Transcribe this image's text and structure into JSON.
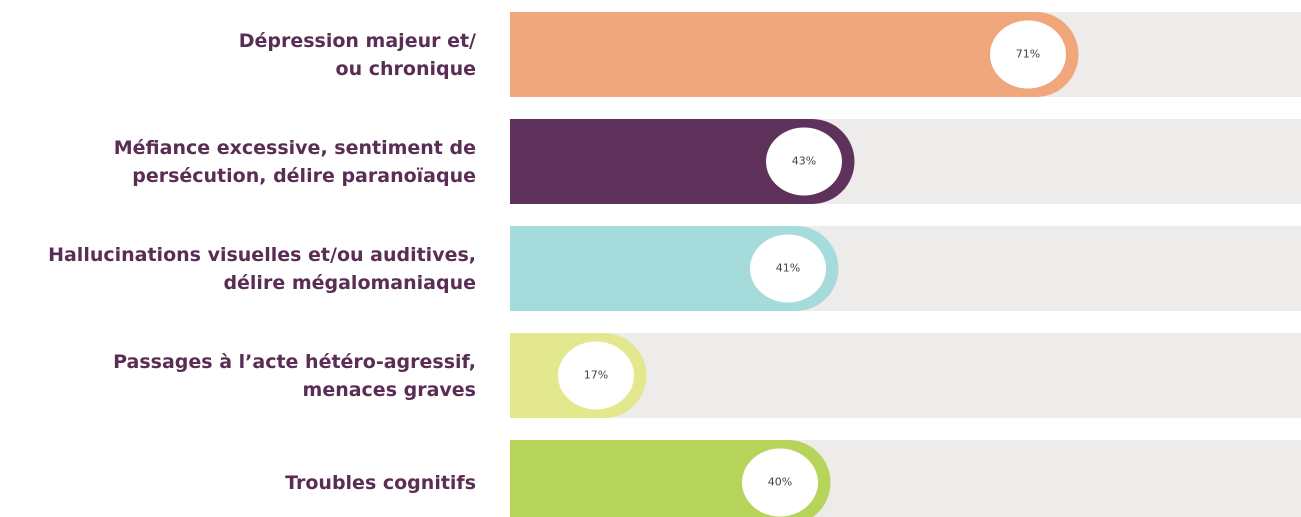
{
  "chart_data": {
    "type": "bar",
    "orientation": "horizontal",
    "categories": [
      "Dépression majeur et/\nou chronique",
      "Méfiance excessive, sentiment de\npersécution, délire paranoïaque",
      "Hallucinations visuelles et/ou auditives,\ndélire mégalomaniaque",
      "Passages à l’acte hétéro-agressif,\nmenaces graves",
      "Troubles cognitifs"
    ],
    "values": [
      71,
      43,
      41,
      17,
      40
    ],
    "value_labels": [
      "71%",
      "43%",
      "41%",
      "17%",
      "40%"
    ],
    "colors": [
      "#f0a77b",
      "#5e325b",
      "#a5dbdb",
      "#e3e78d",
      "#b6d35a"
    ],
    "xlim": [
      0,
      100
    ]
  }
}
